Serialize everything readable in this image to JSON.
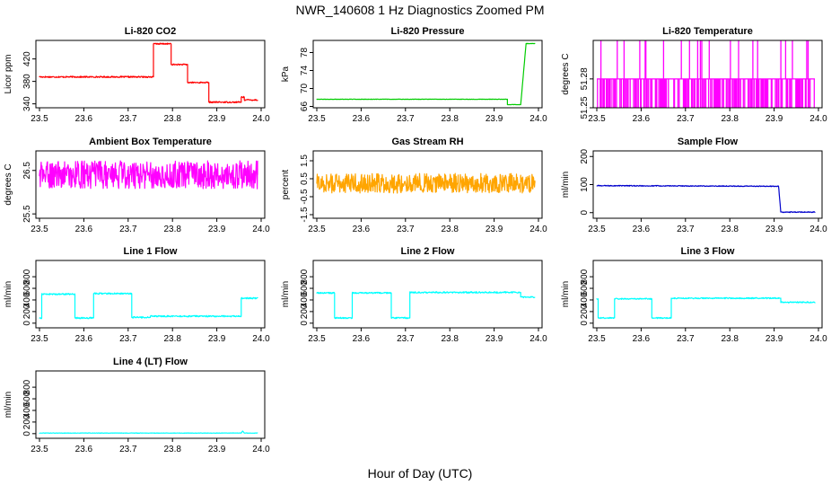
{
  "figure": {
    "title": "NWR_140608  1 Hz Diagnostics Zoomed PM",
    "xlabel": "Hour of Day (UTC)"
  },
  "chart_data": [
    {
      "type": "line",
      "title": "Li-820 CO2",
      "ylabel": "Licor ppm",
      "color": "#ff0000",
      "xlim": [
        23.5,
        24.0
      ],
      "xticks": [
        23.5,
        23.6,
        23.7,
        23.8,
        23.9,
        24.0
      ],
      "ylim": [
        333,
        453
      ],
      "yticks": [
        340,
        380,
        420
      ],
      "noise": 1.2,
      "x": [
        23.5,
        23.757,
        23.757,
        23.797,
        23.797,
        23.834,
        23.834,
        23.882,
        23.882,
        23.955,
        23.955,
        23.962,
        23.962,
        23.992
      ],
      "y": [
        388,
        388,
        447,
        447,
        410,
        410,
        378,
        378,
        343,
        343,
        352,
        352,
        347,
        347
      ]
    },
    {
      "type": "line",
      "title": "Li-820 Pressure",
      "ylabel": "kPa",
      "color": "#00cc00",
      "xlim": [
        23.5,
        24.0
      ],
      "xticks": [
        23.5,
        23.6,
        23.7,
        23.8,
        23.9,
        24.0
      ],
      "ylim": [
        65.7,
        80.7
      ],
      "yticks": [
        66,
        70,
        74,
        78
      ],
      "noise": 0.05,
      "x": [
        23.5,
        23.93,
        23.93,
        23.96,
        23.972,
        23.992
      ],
      "y": [
        67.6,
        67.6,
        66.4,
        66.4,
        80.0,
        80.0
      ]
    },
    {
      "type": "band",
      "title": "Li-820 Temperature",
      "ylabel": "degrees C",
      "color": "#ff00ff",
      "xlim": [
        23.5,
        24.0
      ],
      "xticks": [
        23.5,
        23.6,
        23.7,
        23.8,
        23.9,
        24.0
      ],
      "ylim": [
        51.25,
        51.32
      ],
      "yticks": [
        51.25,
        51.28
      ],
      "x_range": [
        23.5,
        23.992
      ],
      "y_low": 51.25,
      "y_high": 51.28,
      "spike": 51.32
    },
    {
      "type": "line",
      "title": "Ambient Box Temperature",
      "ylabel": "degrees C",
      "color": "#ff00ff",
      "xlim": [
        23.5,
        24.0
      ],
      "xticks": [
        23.5,
        23.6,
        23.7,
        23.8,
        23.9,
        24.0
      ],
      "ylim": [
        25.4,
        26.95
      ],
      "yticks": [
        25.5,
        26.5
      ],
      "noise": 0.32,
      "x": [
        23.5,
        23.992
      ],
      "y": [
        26.4,
        26.4
      ]
    },
    {
      "type": "line",
      "title": "Gas Stream RH",
      "ylabel": "percent",
      "color": "#ffa500",
      "xlim": [
        23.5,
        24.0
      ],
      "xticks": [
        23.5,
        23.6,
        23.7,
        23.8,
        23.9,
        24.0
      ],
      "ylim": [
        -1.7,
        2.05
      ],
      "yticks": [
        -1.5,
        -0.5,
        0.5,
        1.5
      ],
      "noise": 0.55,
      "x": [
        23.5,
        23.992
      ],
      "y": [
        0.25,
        0.25
      ]
    },
    {
      "type": "line",
      "title": "Sample Flow",
      "ylabel": "ml/min",
      "color": "#0000cc",
      "xlim": [
        23.5,
        24.0
      ],
      "xticks": [
        23.5,
        23.6,
        23.7,
        23.8,
        23.9,
        24.0
      ],
      "ylim": [
        -20,
        220
      ],
      "yticks": [
        0,
        100,
        200
      ],
      "noise": 1.5,
      "x": [
        23.5,
        23.91,
        23.915,
        23.925,
        23.992
      ],
      "y": [
        96,
        94,
        2,
        2,
        2
      ]
    },
    {
      "type": "line",
      "title": "Line 1 Flow",
      "ylabel": "ml/min",
      "color": "#00ffff",
      "xlim": [
        23.5,
        24.0
      ],
      "xticks": [
        23.5,
        23.6,
        23.7,
        23.8,
        23.9,
        24.0
      ],
      "ylim": [
        -80,
        1080
      ],
      "yticks": [
        0,
        200,
        400,
        600,
        800
      ],
      "noise": 12,
      "x": [
        23.5,
        23.505,
        23.505,
        23.58,
        23.58,
        23.622,
        23.622,
        23.708,
        23.708,
        23.75,
        23.75,
        23.955,
        23.955,
        23.992
      ],
      "y": [
        90,
        90,
        500,
        500,
        90,
        90,
        510,
        510,
        100,
        100,
        120,
        120,
        430,
        430
      ]
    },
    {
      "type": "line",
      "title": "Line 2 Flow",
      "ylabel": "ml/min",
      "color": "#00ffff",
      "xlim": [
        23.5,
        24.0
      ],
      "xticks": [
        23.5,
        23.6,
        23.7,
        23.8,
        23.9,
        24.0
      ],
      "ylim": [
        -80,
        1080
      ],
      "yticks": [
        0,
        200,
        400,
        600,
        800
      ],
      "noise": 12,
      "x": [
        23.5,
        23.54,
        23.54,
        23.58,
        23.58,
        23.668,
        23.668,
        23.71,
        23.71,
        23.96,
        23.96,
        23.992
      ],
      "y": [
        520,
        520,
        90,
        90,
        520,
        520,
        90,
        90,
        530,
        530,
        450,
        450
      ]
    },
    {
      "type": "line",
      "title": "Line 3 Flow",
      "ylabel": "ml/min",
      "color": "#00ffff",
      "xlim": [
        23.5,
        24.0
      ],
      "xticks": [
        23.5,
        23.6,
        23.7,
        23.8,
        23.9,
        24.0
      ],
      "ylim": [
        -80,
        1080
      ],
      "yticks": [
        0,
        200,
        400,
        600,
        800
      ],
      "noise": 10,
      "x": [
        23.5,
        23.503,
        23.503,
        23.54,
        23.54,
        23.624,
        23.624,
        23.668,
        23.668,
        23.915,
        23.915,
        23.992
      ],
      "y": [
        420,
        420,
        90,
        90,
        420,
        420,
        90,
        90,
        430,
        430,
        360,
        360
      ]
    },
    {
      "type": "line",
      "title": "Line 4 (LT) Flow",
      "ylabel": "ml/min",
      "color": "#00ffff",
      "xlim": [
        23.5,
        24.0
      ],
      "xticks": [
        23.5,
        23.6,
        23.7,
        23.8,
        23.9,
        24.0
      ],
      "ylim": [
        -80,
        1080
      ],
      "yticks": [
        0,
        200,
        400,
        600,
        800
      ],
      "noise": 3,
      "x": [
        23.5,
        23.955,
        23.958,
        23.962,
        23.992
      ],
      "y": [
        10,
        10,
        45,
        10,
        10
      ]
    }
  ]
}
